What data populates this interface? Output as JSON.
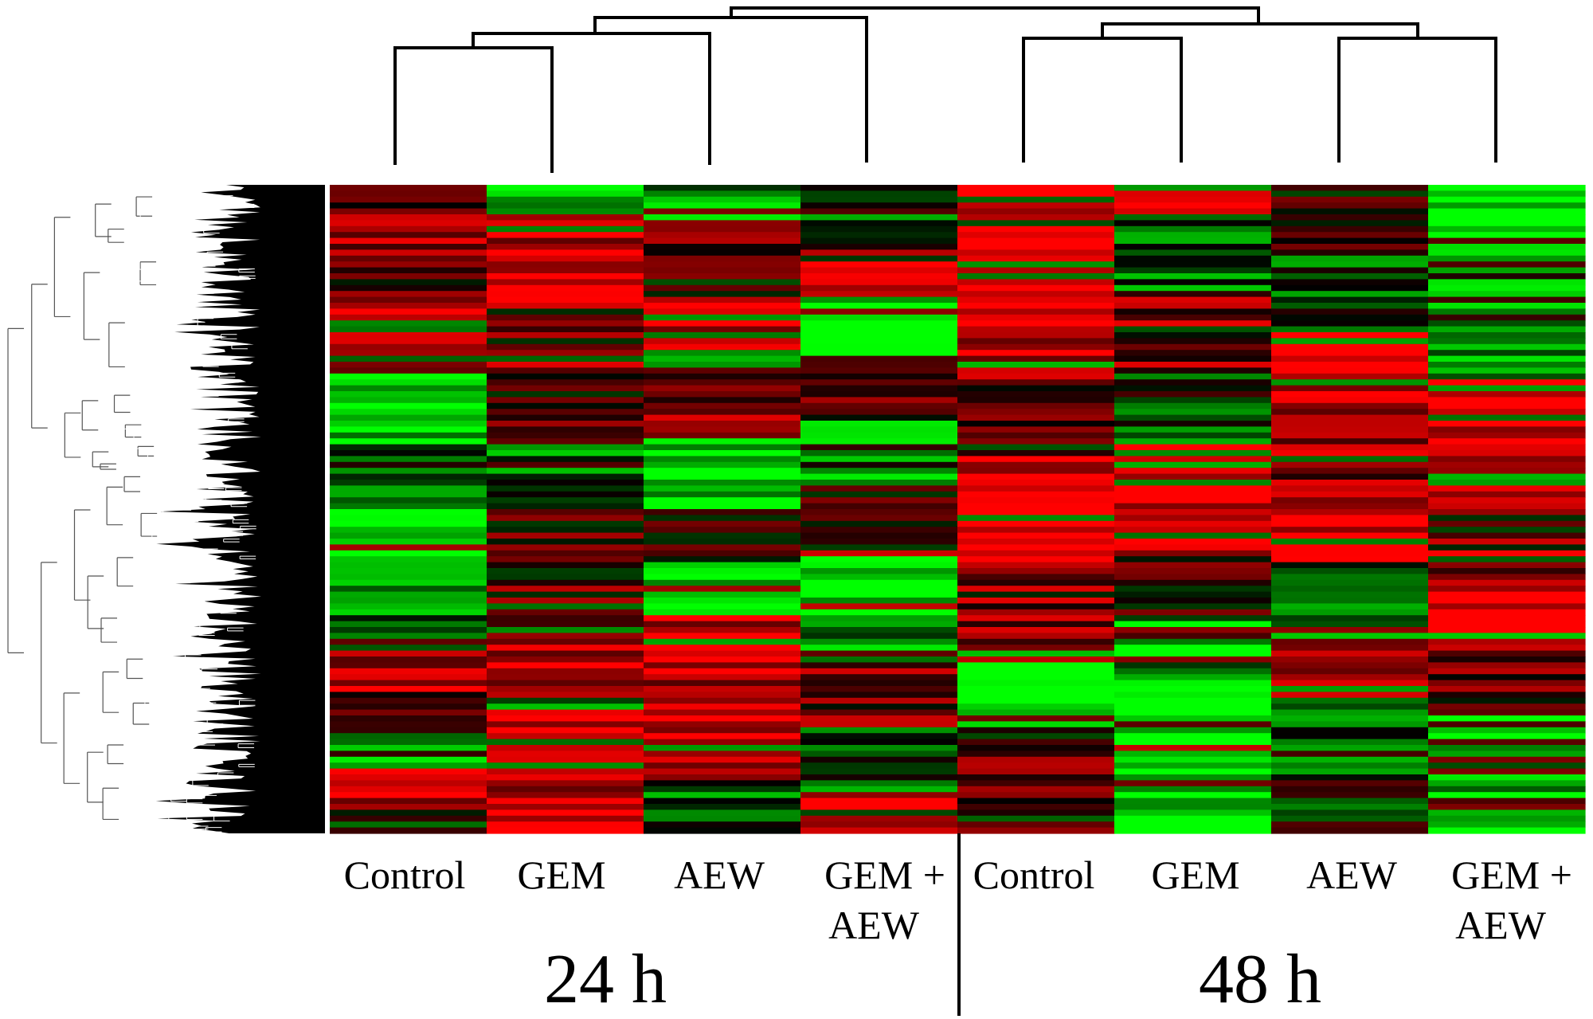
{
  "chart_data": {
    "type": "heatmap",
    "title": "",
    "colors": {
      "high": "#ff0000",
      "mid": "#000000",
      "low": "#00ff00"
    },
    "columns": [
      {
        "group": "24 h",
        "label_lines": [
          "Control"
        ]
      },
      {
        "group": "24 h",
        "label_lines": [
          "GEM"
        ]
      },
      {
        "group": "24 h",
        "label_lines": [
          "AEW"
        ]
      },
      {
        "group": "24 h",
        "label_lines": [
          "GEM +",
          "AEW"
        ]
      },
      {
        "group": "48 h",
        "label_lines": [
          "Control"
        ]
      },
      {
        "group": "48 h",
        "label_lines": [
          "GEM"
        ]
      },
      {
        "group": "48 h",
        "label_lines": [
          "AEW"
        ]
      },
      {
        "group": "48 h",
        "label_lines": [
          "GEM +",
          "AEW"
        ]
      }
    ],
    "groups": [
      "24 h",
      "48 h"
    ],
    "value_range": [
      -1,
      1
    ],
    "column_blocks": [
      [
        [
          0.0,
          0.05,
          0.3
        ],
        [
          0.05,
          0.12,
          0.6
        ],
        [
          0.12,
          0.18,
          0.2
        ],
        [
          0.18,
          0.28,
          0.7
        ],
        [
          0.28,
          0.4,
          -0.8
        ],
        [
          0.4,
          0.5,
          -0.3
        ],
        [
          0.5,
          0.62,
          -0.9
        ],
        [
          0.62,
          0.7,
          -0.5
        ],
        [
          0.7,
          0.78,
          0.7
        ],
        [
          0.78,
          0.85,
          0.4
        ],
        [
          0.85,
          0.9,
          -0.6
        ],
        [
          0.9,
          0.95,
          0.8
        ],
        [
          0.95,
          1.0,
          0.3
        ]
      ],
      [
        [
          0.0,
          0.05,
          -0.7
        ],
        [
          0.05,
          0.18,
          0.8
        ],
        [
          0.18,
          0.28,
          0.6
        ],
        [
          0.28,
          0.4,
          0.2
        ],
        [
          0.4,
          0.5,
          -0.4
        ],
        [
          0.5,
          0.62,
          0.2
        ],
        [
          0.62,
          0.7,
          0.6
        ],
        [
          0.7,
          0.8,
          0.8
        ],
        [
          0.8,
          0.9,
          0.9
        ],
        [
          0.9,
          1.0,
          0.7
        ]
      ],
      [
        [
          0.0,
          0.06,
          -0.6
        ],
        [
          0.06,
          0.18,
          0.3
        ],
        [
          0.18,
          0.28,
          0.9
        ],
        [
          0.28,
          0.38,
          0.5
        ],
        [
          0.38,
          0.5,
          -0.8
        ],
        [
          0.5,
          0.58,
          0.1
        ],
        [
          0.58,
          0.66,
          -0.9
        ],
        [
          0.66,
          0.74,
          0.7
        ],
        [
          0.74,
          0.84,
          0.6
        ],
        [
          0.84,
          0.92,
          0.8
        ],
        [
          0.92,
          1.0,
          -0.4
        ]
      ],
      [
        [
          0.0,
          0.1,
          -0.3
        ],
        [
          0.1,
          0.18,
          0.6
        ],
        [
          0.18,
          0.26,
          -0.9
        ],
        [
          0.26,
          0.36,
          0.3
        ],
        [
          0.36,
          0.46,
          -0.5
        ],
        [
          0.46,
          0.56,
          0.2
        ],
        [
          0.56,
          0.66,
          -0.9
        ],
        [
          0.66,
          0.74,
          -0.6
        ],
        [
          0.74,
          0.84,
          0.4
        ],
        [
          0.84,
          0.94,
          -0.3
        ],
        [
          0.94,
          1.0,
          0.9
        ]
      ],
      [
        [
          0.0,
          0.1,
          0.95
        ],
        [
          0.1,
          0.2,
          0.7
        ],
        [
          0.2,
          0.3,
          0.8
        ],
        [
          0.3,
          0.42,
          0.4
        ],
        [
          0.42,
          0.58,
          0.95
        ],
        [
          0.58,
          0.72,
          0.5
        ],
        [
          0.72,
          0.84,
          -0.9
        ],
        [
          0.84,
          1.0,
          0.3
        ]
      ],
      [
        [
          0.0,
          0.05,
          0.95
        ],
        [
          0.05,
          0.16,
          -0.4
        ],
        [
          0.16,
          0.28,
          0.5
        ],
        [
          0.28,
          0.4,
          -0.3
        ],
        [
          0.4,
          0.56,
          0.8
        ],
        [
          0.56,
          0.66,
          0.2
        ],
        [
          0.66,
          0.76,
          -0.6
        ],
        [
          0.76,
          0.86,
          -0.9
        ],
        [
          0.86,
          1.0,
          -0.95
        ]
      ],
      [
        [
          0.0,
          0.1,
          0.3
        ],
        [
          0.1,
          0.22,
          -0.3
        ],
        [
          0.22,
          0.34,
          0.8
        ],
        [
          0.34,
          0.46,
          0.5
        ],
        [
          0.46,
          0.58,
          0.9
        ],
        [
          0.58,
          0.7,
          -0.5
        ],
        [
          0.7,
          0.8,
          0.6
        ],
        [
          0.8,
          0.92,
          -0.4
        ],
        [
          0.92,
          1.0,
          -0.2
        ]
      ],
      [
        [
          0.0,
          0.12,
          -0.95
        ],
        [
          0.12,
          0.3,
          -0.6
        ],
        [
          0.3,
          0.46,
          0.9
        ],
        [
          0.46,
          0.6,
          0.6
        ],
        [
          0.6,
          0.72,
          0.9
        ],
        [
          0.72,
          0.82,
          0.3
        ],
        [
          0.82,
          1.0,
          -0.7
        ]
      ]
    ]
  }
}
